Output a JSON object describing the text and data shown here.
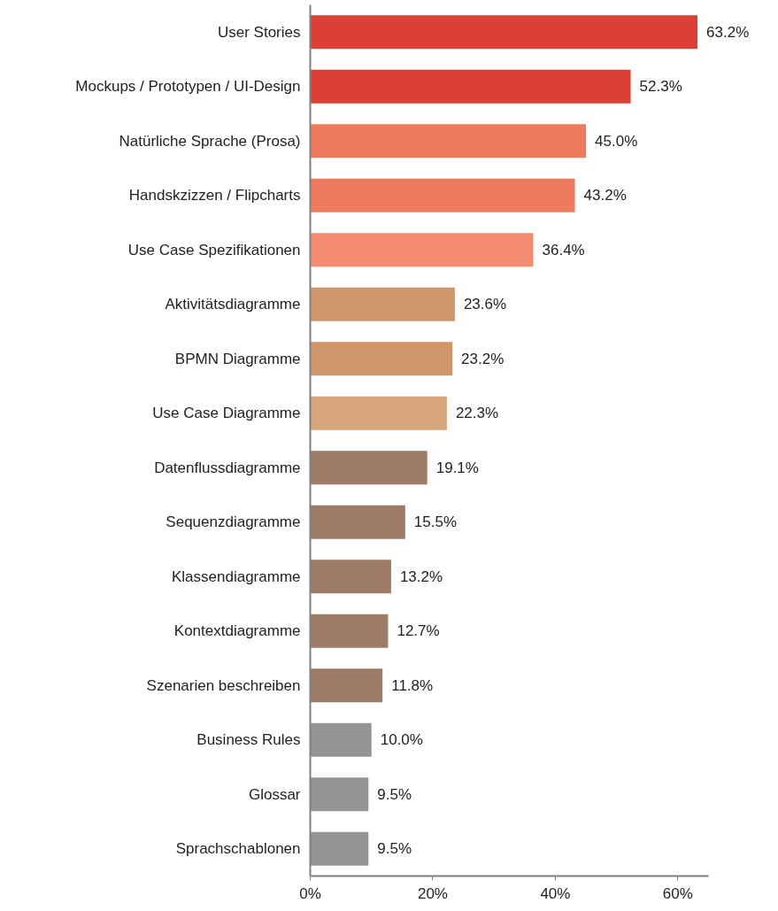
{
  "chart_data": {
    "type": "bar",
    "orientation": "horizontal",
    "categories": [
      "User Stories",
      "Mockups / Prototypen / UI-Design",
      "Natürliche Sprache (Prosa)",
      "Handskzizzen / Flipcharts",
      "Use Case Spezifikationen",
      "Aktivitätsdiagramme",
      "BPMN Diagramme",
      "Use Case Diagramme",
      "Datenflussdiagramme",
      "Sequenzdiagramme",
      "Klassendiagramme",
      "Kontextdiagramme",
      "Szenarien beschreiben",
      "Business Rules",
      "Glossar",
      "Sprachschablonen"
    ],
    "values": [
      63.2,
      52.3,
      45.0,
      43.2,
      36.4,
      23.6,
      23.2,
      22.3,
      19.1,
      15.5,
      13.2,
      12.7,
      11.8,
      10.0,
      9.5,
      9.5
    ],
    "value_labels": [
      "63.2%",
      "52.3%",
      "45.0%",
      "43.2%",
      "36.4%",
      "23.6%",
      "23.2%",
      "22.3%",
      "19.1%",
      "15.5%",
      "13.2%",
      "12.7%",
      "11.8%",
      "10.0%",
      "9.5%",
      "9.5%"
    ],
    "colors": [
      "#db4037",
      "#db4037",
      "#ee7b5e",
      "#ee7b5e",
      "#f38b6e",
      "#cf9669",
      "#cf9669",
      "#d6a57a",
      "#9e7b67",
      "#9e7b67",
      "#9e7b67",
      "#9e7b67",
      "#9e7b67",
      "#939595",
      "#939595",
      "#939595"
    ],
    "xlim": [
      0,
      65
    ],
    "xticks": [
      {
        "value": 0,
        "label": "0%"
      },
      {
        "value": 20,
        "label": "20%"
      },
      {
        "value": 40,
        "label": "40%"
      },
      {
        "value": 60,
        "label": "60%"
      }
    ]
  }
}
